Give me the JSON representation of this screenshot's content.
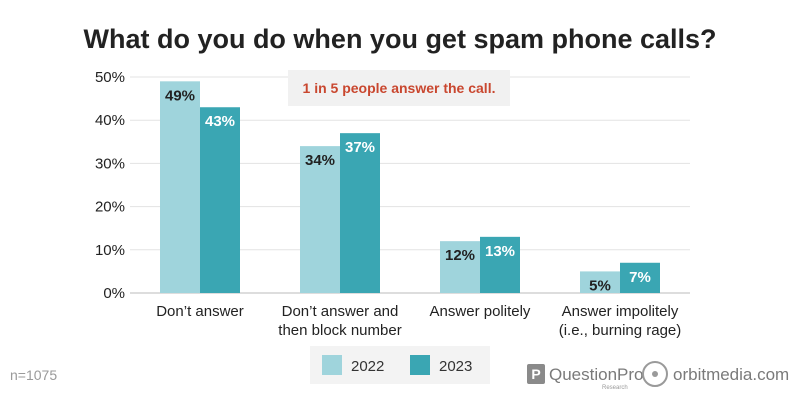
{
  "chart_data": {
    "type": "bar",
    "title": "What do you do when you get spam phone calls?",
    "categories": [
      [
        "Don’t answer"
      ],
      [
        "Don’t answer and",
        "then block number"
      ],
      [
        "Answer politely"
      ],
      [
        "Answer impolitely",
        "(i.e., burning rage)"
      ]
    ],
    "series": [
      {
        "name": "2022",
        "values": [
          49,
          34,
          12,
          5
        ],
        "labels": [
          "49%",
          "34%",
          "12%",
          "5%"
        ],
        "color": "#9fd4dc"
      },
      {
        "name": "2023",
        "values": [
          43,
          37,
          13,
          7
        ],
        "labels": [
          "43%",
          "37%",
          "13%",
          "7%"
        ],
        "color": "#3aa6b3"
      }
    ],
    "ylim": [
      0,
      50
    ],
    "yticks": [
      "0%",
      "10%",
      "20%",
      "30%",
      "40%",
      "50%"
    ],
    "grid": true,
    "legend_position": "bottom-center",
    "annotation": "1 in 5 people answer the call."
  },
  "footer": {
    "sample": "n=1075",
    "brand1": "QuestionPro",
    "brand1_sub": "Research",
    "brand2": "orbitmedia.com"
  },
  "colors": {
    "accent_red": "#c9472f",
    "callout_bg": "#f1f1f1"
  }
}
